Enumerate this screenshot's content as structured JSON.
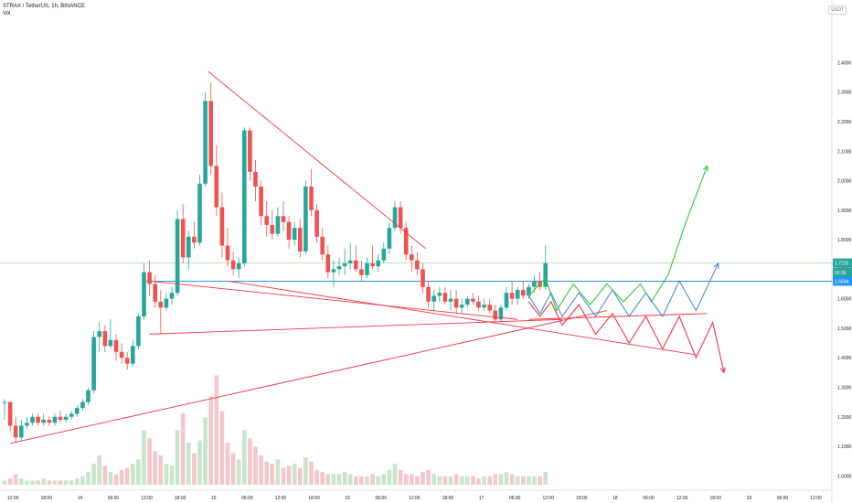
{
  "header": {
    "symbol_line": "STRAX / TetherUS, 1h, BINANCE",
    "volume_label": "Vol",
    "currency_badge": "USDT"
  },
  "chart_data": {
    "type": "candlestick",
    "title": "STRAX / TetherUS, 1h, BINANCE",
    "y_range": [
      0.97,
      2.55
    ],
    "y_ticks": [
      "2.4000",
      "2.3000",
      "2.2000",
      "2.1000",
      "2.0000",
      "1.9000",
      "1.8000",
      "1.7000",
      "1.6000",
      "1.5000",
      "1.4000",
      "1.3000",
      "1.2000",
      "1.1000",
      "1.0000"
    ],
    "x_ticks": [
      {
        "label": "12:00",
        "i": 1.5
      },
      {
        "label": "18:00",
        "i": 7.5
      },
      {
        "label": "14",
        "i": 13.5
      },
      {
        "label": "06:00",
        "i": 19.5
      },
      {
        "label": "12:00",
        "i": 25.5
      },
      {
        "label": "18:00",
        "i": 31.5
      },
      {
        "label": "15",
        "i": 37.5
      },
      {
        "label": "06:00",
        "i": 43.5
      },
      {
        "label": "12:00",
        "i": 49.5
      },
      {
        "label": "18:00",
        "i": 55.5
      },
      {
        "label": "16",
        "i": 61.5
      },
      {
        "label": "06:00",
        "i": 67.5
      },
      {
        "label": "12:00",
        "i": 73.5
      },
      {
        "label": "18:00",
        "i": 79.5
      },
      {
        "label": "17",
        "i": 85.5
      },
      {
        "label": "06:00",
        "i": 91.5
      },
      {
        "label": "12:00",
        "i": 97.5
      },
      {
        "label": "18:00",
        "i": 103.5
      },
      {
        "label": "18",
        "i": 109.5
      },
      {
        "label": "06:00",
        "i": 115.5
      },
      {
        "label": "12:00",
        "i": 121.5
      },
      {
        "label": "18:00",
        "i": 127.5
      },
      {
        "label": "19",
        "i": 133.5
      },
      {
        "label": "06:00",
        "i": 139.5
      },
      {
        "label": "12:00",
        "i": 145.5
      }
    ],
    "last_price_label": "1.7210",
    "countdown_label": "03:36",
    "ref_price_label": "1.6594",
    "ref_price": 1.6594,
    "last_price": 1.721,
    "colors": {
      "up": "#26a69a",
      "down": "#ef5350",
      "vol_up": "#c8e6c9",
      "vol_down": "#f5c6cb",
      "trend": "#f23645",
      "green_path": "#2ecc2e",
      "blue_path": "#4a90d9",
      "red_path": "#f23645",
      "hline": "#2196f3",
      "price_line": "#a5d6a7"
    },
    "candles": [
      [
        1.25,
        1.26,
        1.19,
        1.25
      ],
      [
        1.25,
        1.25,
        1.15,
        1.17
      ],
      [
        1.17,
        1.2,
        1.11,
        1.13
      ],
      [
        1.13,
        1.19,
        1.12,
        1.17
      ],
      [
        1.17,
        1.2,
        1.16,
        1.18
      ],
      [
        1.18,
        1.21,
        1.17,
        1.2
      ],
      [
        1.2,
        1.21,
        1.17,
        1.18
      ],
      [
        1.18,
        1.21,
        1.17,
        1.19
      ],
      [
        1.19,
        1.2,
        1.17,
        1.18
      ],
      [
        1.18,
        1.21,
        1.17,
        1.2
      ],
      [
        1.2,
        1.22,
        1.18,
        1.19
      ],
      [
        1.19,
        1.21,
        1.18,
        1.2
      ],
      [
        1.2,
        1.22,
        1.19,
        1.21
      ],
      [
        1.21,
        1.24,
        1.2,
        1.23
      ],
      [
        1.23,
        1.26,
        1.22,
        1.25
      ],
      [
        1.25,
        1.3,
        1.24,
        1.29
      ],
      [
        1.29,
        1.49,
        1.28,
        1.47
      ],
      [
        1.47,
        1.52,
        1.42,
        1.49
      ],
      [
        1.49,
        1.51,
        1.42,
        1.44
      ],
      [
        1.44,
        1.53,
        1.43,
        1.46
      ],
      [
        1.46,
        1.48,
        1.39,
        1.42
      ],
      [
        1.42,
        1.45,
        1.38,
        1.4
      ],
      [
        1.4,
        1.42,
        1.36,
        1.38
      ],
      [
        1.38,
        1.46,
        1.37,
        1.44
      ],
      [
        1.44,
        1.55,
        1.43,
        1.54
      ],
      [
        1.54,
        1.72,
        1.53,
        1.69
      ],
      [
        1.69,
        1.73,
        1.61,
        1.65
      ],
      [
        1.65,
        1.68,
        1.57,
        1.59
      ],
      [
        1.59,
        1.63,
        1.48,
        1.57
      ],
      [
        1.57,
        1.62,
        1.56,
        1.6
      ],
      [
        1.6,
        1.64,
        1.58,
        1.62
      ],
      [
        1.62,
        1.9,
        1.61,
        1.87
      ],
      [
        1.87,
        1.92,
        1.72,
        1.74
      ],
      [
        1.74,
        1.83,
        1.7,
        1.81
      ],
      [
        1.81,
        1.86,
        1.77,
        1.79
      ],
      [
        1.79,
        2.02,
        1.78,
        1.99
      ],
      [
        1.99,
        2.3,
        1.98,
        2.27
      ],
      [
        2.27,
        2.33,
        2.02,
        2.05
      ],
      [
        2.05,
        2.12,
        1.88,
        1.91
      ],
      [
        1.91,
        1.96,
        1.74,
        1.78
      ],
      [
        1.78,
        1.84,
        1.71,
        1.73
      ],
      [
        1.73,
        1.76,
        1.68,
        1.7
      ],
      [
        1.7,
        1.74,
        1.67,
        1.72
      ],
      [
        1.72,
        2.18,
        1.71,
        2.17
      ],
      [
        2.17,
        2.18,
        2.0,
        2.03
      ],
      [
        2.03,
        2.07,
        1.93,
        1.98
      ],
      [
        1.98,
        2.0,
        1.85,
        1.88
      ],
      [
        1.88,
        1.93,
        1.81,
        1.85
      ],
      [
        1.85,
        1.9,
        1.8,
        1.82
      ],
      [
        1.82,
        1.91,
        1.81,
        1.88
      ],
      [
        1.88,
        1.93,
        1.83,
        1.86
      ],
      [
        1.86,
        1.88,
        1.77,
        1.8
      ],
      [
        1.8,
        1.86,
        1.78,
        1.84
      ],
      [
        1.84,
        1.87,
        1.74,
        1.76
      ],
      [
        1.76,
        2.0,
        1.75,
        1.98
      ],
      [
        1.98,
        2.04,
        1.88,
        1.9
      ],
      [
        1.9,
        1.92,
        1.79,
        1.81
      ],
      [
        1.81,
        1.84,
        1.73,
        1.75
      ],
      [
        1.75,
        1.78,
        1.67,
        1.69
      ],
      [
        1.69,
        1.73,
        1.64,
        1.7
      ],
      [
        1.7,
        1.74,
        1.68,
        1.71
      ],
      [
        1.71,
        1.77,
        1.68,
        1.72
      ],
      [
        1.72,
        1.79,
        1.7,
        1.73
      ],
      [
        1.73,
        1.78,
        1.69,
        1.7
      ],
      [
        1.7,
        1.73,
        1.66,
        1.68
      ],
      [
        1.68,
        1.74,
        1.67,
        1.72
      ],
      [
        1.72,
        1.78,
        1.7,
        1.71
      ],
      [
        1.71,
        1.75,
        1.69,
        1.73
      ],
      [
        1.73,
        1.79,
        1.72,
        1.77
      ],
      [
        1.77,
        1.86,
        1.75,
        1.84
      ],
      [
        1.84,
        1.93,
        1.83,
        1.91
      ],
      [
        1.91,
        1.93,
        1.82,
        1.84
      ],
      [
        1.84,
        1.86,
        1.73,
        1.75
      ],
      [
        1.75,
        1.78,
        1.69,
        1.73
      ],
      [
        1.73,
        1.76,
        1.68,
        1.7
      ],
      [
        1.7,
        1.72,
        1.62,
        1.64
      ],
      [
        1.64,
        1.66,
        1.57,
        1.59
      ],
      [
        1.59,
        1.63,
        1.56,
        1.61
      ],
      [
        1.61,
        1.64,
        1.59,
        1.62
      ],
      [
        1.62,
        1.64,
        1.58,
        1.59
      ],
      [
        1.59,
        1.63,
        1.56,
        1.6
      ],
      [
        1.6,
        1.63,
        1.55,
        1.57
      ],
      [
        1.57,
        1.6,
        1.55,
        1.58
      ],
      [
        1.58,
        1.61,
        1.57,
        1.6
      ],
      [
        1.6,
        1.62,
        1.58,
        1.59
      ],
      [
        1.59,
        1.61,
        1.56,
        1.57
      ],
      [
        1.57,
        1.6,
        1.56,
        1.58
      ],
      [
        1.58,
        1.6,
        1.55,
        1.56
      ],
      [
        1.56,
        1.58,
        1.52,
        1.53
      ],
      [
        1.53,
        1.58,
        1.52,
        1.57
      ],
      [
        1.57,
        1.64,
        1.56,
        1.62
      ],
      [
        1.62,
        1.66,
        1.58,
        1.6
      ],
      [
        1.6,
        1.64,
        1.58,
        1.63
      ],
      [
        1.63,
        1.66,
        1.6,
        1.61
      ],
      [
        1.61,
        1.65,
        1.6,
        1.64
      ],
      [
        1.64,
        1.68,
        1.62,
        1.66
      ],
      [
        1.66,
        1.69,
        1.63,
        1.64
      ],
      [
        1.64,
        1.78,
        1.63,
        1.72
      ]
    ],
    "volumes": [
      0.02,
      0.03,
      0.05,
      0.03,
      0.02,
      0.02,
      0.02,
      0.03,
      0.02,
      0.02,
      0.02,
      0.02,
      0.02,
      0.03,
      0.04,
      0.06,
      0.1,
      0.14,
      0.09,
      0.06,
      0.05,
      0.07,
      0.08,
      0.1,
      0.12,
      0.26,
      0.22,
      0.16,
      0.14,
      0.1,
      0.09,
      0.26,
      0.34,
      0.2,
      0.15,
      0.21,
      0.32,
      0.42,
      0.52,
      0.35,
      0.2,
      0.15,
      0.12,
      0.26,
      0.22,
      0.18,
      0.14,
      0.11,
      0.1,
      0.12,
      0.08,
      0.09,
      0.1,
      0.08,
      0.13,
      0.11,
      0.07,
      0.06,
      0.05,
      0.05,
      0.05,
      0.06,
      0.05,
      0.04,
      0.04,
      0.04,
      0.05,
      0.04,
      0.05,
      0.07,
      0.1,
      0.07,
      0.05,
      0.05,
      0.04,
      0.06,
      0.07,
      0.05,
      0.04,
      0.04,
      0.04,
      0.05,
      0.04,
      0.04,
      0.04,
      0.03,
      0.04,
      0.04,
      0.05,
      0.05,
      0.06,
      0.05,
      0.04,
      0.04,
      0.04,
      0.04,
      0.04,
      0.06
    ],
    "annotations": {
      "trendlines": [
        [
          [
            36.5,
            2.37
          ],
          [
            75.5,
            1.77
          ]
        ],
        [
          [
            1,
            1.11
          ],
          [
            108,
            1.56
          ]
        ],
        [
          [
            40,
            1.66
          ],
          [
            94,
            1.5
          ]
        ],
        [
          [
            26,
            1.48
          ],
          [
            100,
            1.53
          ]
        ],
        [
          [
            26,
            1.66
          ],
          [
            92,
            1.53
          ]
        ]
      ],
      "projection_green": [
        [
          94,
          1.61
        ],
        [
          97,
          1.67
        ],
        [
          99,
          1.56
        ],
        [
          102,
          1.65
        ],
        [
          105,
          1.58
        ],
        [
          108,
          1.65
        ],
        [
          111,
          1.59
        ],
        [
          114,
          1.65
        ],
        [
          116,
          1.59
        ],
        [
          119,
          1.68
        ],
        [
          122,
          1.85
        ],
        [
          126,
          2.05
        ]
      ],
      "projection_blue": [
        [
          94,
          1.61
        ],
        [
          96,
          1.55
        ],
        [
          98,
          1.62
        ],
        [
          100,
          1.54
        ],
        [
          103,
          1.62
        ],
        [
          106,
          1.54
        ],
        [
          109,
          1.63
        ],
        [
          112,
          1.54
        ],
        [
          115,
          1.62
        ],
        [
          118,
          1.54
        ],
        [
          121,
          1.66
        ],
        [
          124,
          1.56
        ],
        [
          128,
          1.72
        ]
      ],
      "projection_red": [
        [
          94,
          1.59
        ],
        [
          96,
          1.54
        ],
        [
          98,
          1.59
        ],
        [
          100,
          1.51
        ],
        [
          103,
          1.58
        ],
        [
          106,
          1.48
        ],
        [
          109,
          1.55
        ],
        [
          112,
          1.45
        ],
        [
          115,
          1.54
        ],
        [
          118,
          1.43
        ],
        [
          121,
          1.54
        ],
        [
          124,
          1.4
        ],
        [
          127,
          1.52
        ],
        [
          129,
          1.35
        ]
      ],
      "red_channel": [
        [
          [
            94,
            1.53
          ],
          [
            126,
            1.55
          ]
        ],
        [
          [
            94,
            1.5
          ],
          [
            124,
            1.41
          ]
        ]
      ]
    }
  }
}
